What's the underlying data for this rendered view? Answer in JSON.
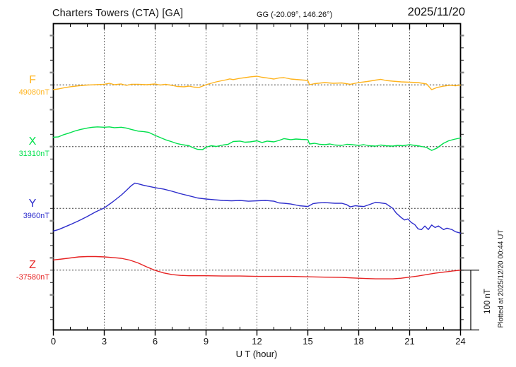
{
  "header": {
    "title": "Charters Towers (CTA)  [GA]",
    "coordinates": "GG (-20.09°, 146.26°)",
    "date": "2025/11/20"
  },
  "footer": {
    "plotted_at": "Plotted at 2025/12/20 00:44 UT"
  },
  "chart_data": {
    "type": "line",
    "title": "Charters Towers (CTA) [GA] magnetogram",
    "xlabel": "U T (hour)",
    "x_range": [
      0,
      24
    ],
    "x_ticks": [
      0,
      3,
      6,
      9,
      12,
      15,
      18,
      21,
      24
    ],
    "grid": "dotted vertical every 3 h, dotted horizontal at each trace baseline",
    "scale_bar_label": "100 nT",
    "series": [
      {
        "id": "F",
        "label": "F",
        "baseline_label": "49080nT",
        "baseline_value_nT": 49080,
        "color": "#ffb41e",
        "points": [
          [
            0,
            -7.7
          ],
          [
            0.3,
            -6.5
          ],
          [
            0.7,
            -4.3
          ],
          [
            1,
            -3
          ],
          [
            1.5,
            -1.4
          ],
          [
            2,
            -0.2
          ],
          [
            2.5,
            0.5
          ],
          [
            3,
            1
          ],
          [
            3.3,
            2.6
          ],
          [
            3.6,
            0.3
          ],
          [
            4,
            1.5
          ],
          [
            4.3,
            -0.8
          ],
          [
            4.6,
            1
          ],
          [
            5,
            1
          ],
          [
            5.5,
            0.3
          ],
          [
            6,
            1.5
          ],
          [
            6.3,
            -0.2
          ],
          [
            6.6,
            1
          ],
          [
            7,
            -0.8
          ],
          [
            7.3,
            -2.5
          ],
          [
            7.7,
            -3.1
          ],
          [
            8,
            -2
          ],
          [
            8.3,
            -3.7
          ],
          [
            8.6,
            -4
          ],
          [
            9,
            0.3
          ],
          [
            9.3,
            2.6
          ],
          [
            9.6,
            4.9
          ],
          [
            10,
            7.2
          ],
          [
            10.2,
            8.4
          ],
          [
            10.4,
            9.7
          ],
          [
            10.6,
            8.6
          ],
          [
            11,
            10.7
          ],
          [
            11.3,
            11.8
          ],
          [
            11.6,
            13
          ],
          [
            12,
            14.1
          ],
          [
            12.3,
            12.4
          ],
          [
            12.6,
            11.3
          ],
          [
            13,
            9.5
          ],
          [
            13.3,
            11.3
          ],
          [
            13.6,
            11.8
          ],
          [
            14,
            9.5
          ],
          [
            14.5,
            8.4
          ],
          [
            15,
            7.2
          ],
          [
            15.1,
            0.3
          ],
          [
            15.4,
            2
          ],
          [
            16,
            3.8
          ],
          [
            16.5,
            2.6
          ],
          [
            17,
            3.2
          ],
          [
            17.5,
            1
          ],
          [
            18,
            3.8
          ],
          [
            18.5,
            5.5
          ],
          [
            19,
            7.8
          ],
          [
            19.3,
            9
          ],
          [
            19.6,
            7.2
          ],
          [
            20,
            6.1
          ],
          [
            20.5,
            4.9
          ],
          [
            21,
            4.4
          ],
          [
            21.5,
            3.8
          ],
          [
            22,
            1.5
          ],
          [
            22.3,
            -7.7
          ],
          [
            22.6,
            -4.3
          ],
          [
            23,
            -1.9
          ],
          [
            23.4,
            -0.6
          ],
          [
            23.7,
            -1.4
          ],
          [
            24,
            -0.2
          ]
        ]
      },
      {
        "id": "X",
        "label": "X",
        "baseline_label": "31310nT",
        "baseline_value_nT": 31310,
        "color": "#00e04c",
        "points": [
          [
            0,
            15.3
          ],
          [
            0.3,
            15.9
          ],
          [
            0.6,
            19.3
          ],
          [
            1,
            22.8
          ],
          [
            1.3,
            25.6
          ],
          [
            1.6,
            27.9
          ],
          [
            2,
            30.2
          ],
          [
            2.3,
            31.4
          ],
          [
            2.6,
            32
          ],
          [
            3,
            31.4
          ],
          [
            3.3,
            32
          ],
          [
            3.6,
            30.8
          ],
          [
            4,
            31.4
          ],
          [
            4.3,
            30.2
          ],
          [
            4.6,
            27.9
          ],
          [
            5,
            25.1
          ],
          [
            5.3,
            24.5
          ],
          [
            5.6,
            23.3
          ],
          [
            6,
            18.2
          ],
          [
            6.3,
            14.7
          ],
          [
            6.6,
            11.3
          ],
          [
            7,
            7.8
          ],
          [
            7.3,
            4.9
          ],
          [
            7.6,
            3.2
          ],
          [
            8,
            1.5
          ],
          [
            8.2,
            -1.4
          ],
          [
            8.5,
            -4.3
          ],
          [
            8.8,
            -4.8
          ],
          [
            9,
            -0.8
          ],
          [
            9.3,
            1.5
          ],
          [
            9.6,
            0.3
          ],
          [
            10,
            2.6
          ],
          [
            10.3,
            3.8
          ],
          [
            10.6,
            8.4
          ],
          [
            11,
            9
          ],
          [
            11.3,
            7.2
          ],
          [
            11.6,
            7.8
          ],
          [
            12,
            9.5
          ],
          [
            12.3,
            6.7
          ],
          [
            12.6,
            9
          ],
          [
            13,
            7.8
          ],
          [
            13.3,
            10.1
          ],
          [
            13.6,
            13
          ],
          [
            14,
            11.3
          ],
          [
            14.3,
            12.4
          ],
          [
            14.6,
            11.8
          ],
          [
            15,
            11.3
          ],
          [
            15.1,
            4.4
          ],
          [
            15.4,
            5.5
          ],
          [
            15.7,
            3.8
          ],
          [
            16,
            3.2
          ],
          [
            16.3,
            4.4
          ],
          [
            16.6,
            2.6
          ],
          [
            17,
            2.1
          ],
          [
            17.3,
            3.8
          ],
          [
            17.6,
            3.2
          ],
          [
            18,
            2.1
          ],
          [
            18.3,
            3.2
          ],
          [
            18.6,
            1.5
          ],
          [
            19,
            0.9
          ],
          [
            19.3,
            2.6
          ],
          [
            19.6,
            1.5
          ],
          [
            20,
            0.9
          ],
          [
            20.3,
            2.1
          ],
          [
            20.6,
            1.5
          ],
          [
            21,
            3.2
          ],
          [
            21.3,
            2.1
          ],
          [
            21.6,
            0.9
          ],
          [
            22,
            -1.4
          ],
          [
            22.3,
            -6
          ],
          [
            22.6,
            -2.5
          ],
          [
            23,
            5.5
          ],
          [
            23.3,
            9.5
          ],
          [
            23.6,
            11.8
          ],
          [
            24,
            14.1
          ]
        ]
      },
      {
        "id": "Y",
        "label": "Y",
        "baseline_label": "3960nT",
        "baseline_value_nT": 3960,
        "color": "#2d2dcc",
        "points": [
          [
            0,
            -36.6
          ],
          [
            0.3,
            -34.3
          ],
          [
            0.6,
            -30.8
          ],
          [
            1,
            -26.2
          ],
          [
            1.5,
            -19.9
          ],
          [
            2,
            -13
          ],
          [
            2.5,
            -5.5
          ],
          [
            3,
            0.8
          ],
          [
            3.5,
            10.6
          ],
          [
            4,
            21.5
          ],
          [
            4.3,
            29
          ],
          [
            4.6,
            37
          ],
          [
            4.8,
            41
          ],
          [
            5,
            39.9
          ],
          [
            5.3,
            37.6
          ],
          [
            5.6,
            35.9
          ],
          [
            6,
            33.6
          ],
          [
            6.5,
            31.3
          ],
          [
            7,
            27.8
          ],
          [
            7.5,
            23.8
          ],
          [
            8,
            20.4
          ],
          [
            8.5,
            16.9
          ],
          [
            9,
            15.2
          ],
          [
            9.5,
            14
          ],
          [
            10,
            12.9
          ],
          [
            10.5,
            12.3
          ],
          [
            11,
            12.9
          ],
          [
            11.5,
            11.7
          ],
          [
            12,
            12.3
          ],
          [
            12.5,
            12.9
          ],
          [
            13,
            11.7
          ],
          [
            13.3,
            8.9
          ],
          [
            13.6,
            8.3
          ],
          [
            14,
            7.1
          ],
          [
            14.5,
            4.3
          ],
          [
            15,
            3.1
          ],
          [
            15.3,
            7.7
          ],
          [
            15.6,
            8.9
          ],
          [
            16,
            9.4
          ],
          [
            16.3,
            8.9
          ],
          [
            16.6,
            8.3
          ],
          [
            17,
            8.3
          ],
          [
            17.3,
            6
          ],
          [
            17.5,
            2.5
          ],
          [
            17.8,
            4.3
          ],
          [
            18,
            3.7
          ],
          [
            18.3,
            3.1
          ],
          [
            18.6,
            6
          ],
          [
            19,
            10
          ],
          [
            19.3,
            8.9
          ],
          [
            19.6,
            7.7
          ],
          [
            20,
            0.2
          ],
          [
            20.2,
            -7.2
          ],
          [
            20.5,
            -14.7
          ],
          [
            20.7,
            -18.7
          ],
          [
            20.9,
            -17
          ],
          [
            21.1,
            -22.8
          ],
          [
            21.3,
            -26.2
          ],
          [
            21.5,
            -33.1
          ],
          [
            21.7,
            -34.3
          ],
          [
            21.9,
            -28.5
          ],
          [
            22.1,
            -34.3
          ],
          [
            22.3,
            -26.8
          ],
          [
            22.5,
            -30.8
          ],
          [
            22.7,
            -28.5
          ],
          [
            23,
            -34.3
          ],
          [
            23.2,
            -32
          ],
          [
            23.5,
            -34.3
          ],
          [
            23.7,
            -37.7
          ],
          [
            24,
            -40
          ]
        ]
      },
      {
        "id": "Z",
        "label": "Z",
        "baseline_label": "-37580nT",
        "baseline_value_nT": -37580,
        "color": "#e62222",
        "points": [
          [
            0,
            16.6
          ],
          [
            0.5,
            18.1
          ],
          [
            1,
            19.8
          ],
          [
            1.5,
            21.5
          ],
          [
            2,
            22.1
          ],
          [
            2.5,
            22.1
          ],
          [
            3,
            21.5
          ],
          [
            3.5,
            20.4
          ],
          [
            4,
            19.2
          ],
          [
            4.5,
            16.3
          ],
          [
            5,
            11.7
          ],
          [
            5.5,
            5.4
          ],
          [
            6,
            -0.3
          ],
          [
            6.5,
            -4.4
          ],
          [
            7,
            -7.2
          ],
          [
            7.5,
            -8.4
          ],
          [
            8,
            -9
          ],
          [
            9,
            -9
          ],
          [
            10,
            -9.5
          ],
          [
            11,
            -9.5
          ],
          [
            12,
            -10.1
          ],
          [
            13,
            -10.1
          ],
          [
            14,
            -10.1
          ],
          [
            15,
            -10.7
          ],
          [
            16,
            -11.3
          ],
          [
            17,
            -11.8
          ],
          [
            17.5,
            -12.4
          ],
          [
            18,
            -13
          ],
          [
            18.5,
            -13.6
          ],
          [
            19,
            -14.1
          ],
          [
            19.5,
            -14.1
          ],
          [
            20,
            -14.1
          ],
          [
            20.5,
            -13
          ],
          [
            21,
            -11.3
          ],
          [
            21.5,
            -9.5
          ],
          [
            22,
            -7.2
          ],
          [
            22.5,
            -4.9
          ],
          [
            23,
            -3.2
          ],
          [
            23.5,
            -1.5
          ],
          [
            24,
            0
          ]
        ]
      }
    ]
  }
}
